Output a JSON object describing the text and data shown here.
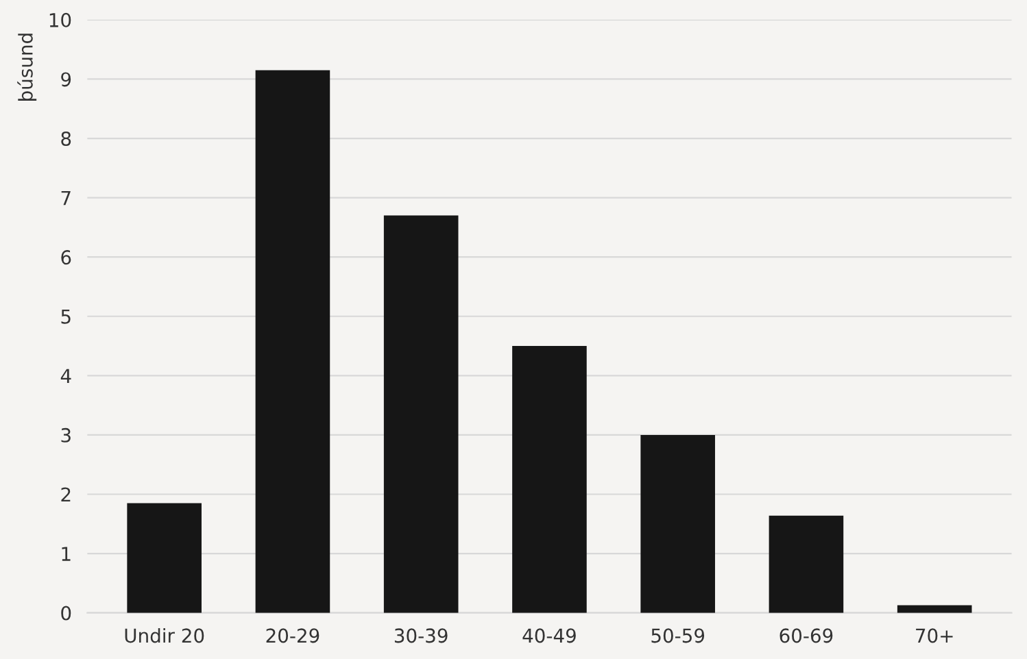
{
  "chart_data": {
    "type": "bar",
    "ylabel": "þúsund",
    "categories": [
      "Undir 20",
      "20-29",
      "30-39",
      "40-49",
      "50-59",
      "60-69",
      "70+"
    ],
    "values": [
      1.85,
      9.15,
      6.7,
      4.5,
      3.0,
      1.64,
      0.13
    ],
    "color": "#161616",
    "ylim": [
      0,
      10
    ],
    "yticks": [
      0,
      1,
      2,
      3,
      4,
      5,
      6,
      7,
      8,
      9,
      10
    ],
    "grid": "y"
  }
}
